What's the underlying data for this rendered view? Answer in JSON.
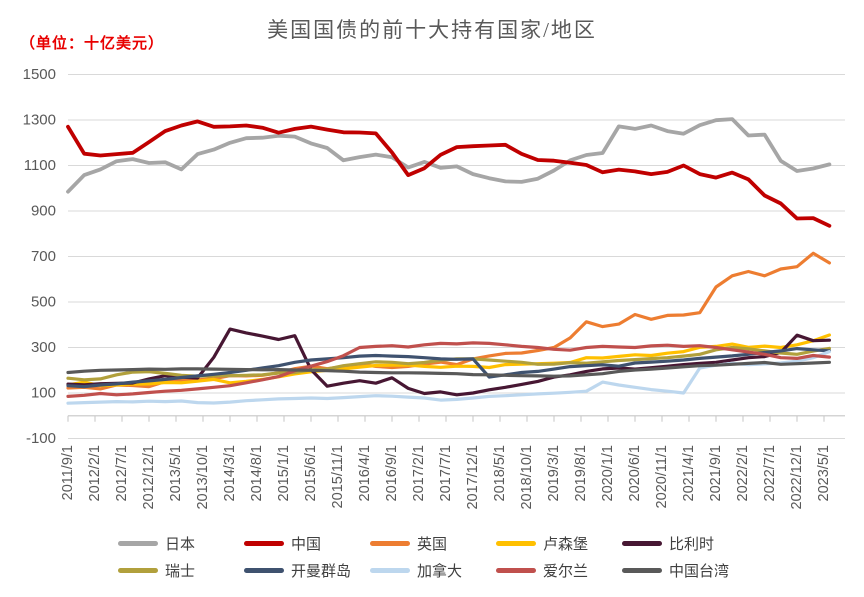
{
  "header": {
    "unit_label": "（单位：十亿美元）",
    "title": "美国国债的前十大持有国家/地区",
    "unit_label_color": "#e80000",
    "title_color": "#595959"
  },
  "y_axis": {
    "min": -100,
    "max": 1500,
    "step": 200,
    "tick_labels": [
      "1500",
      "1300",
      "1100",
      "900",
      "700",
      "500",
      "300",
      "100",
      "-100"
    ],
    "label_color": "#595959",
    "gridline_color": "#d9d9d9"
  },
  "x_axis": {
    "tick_interval_months": 5,
    "first_month": "2011/9",
    "last_sample": "2023/6",
    "label_color": "#595959",
    "tick_labels": [
      "2011/9/1",
      "2012/2/1",
      "2012/7/1",
      "2012/12/1",
      "2013/5/1",
      "2013/10/1",
      "2014/3/1",
      "2014/8/1",
      "2015/1/1",
      "2015/6/1",
      "2015/11/1",
      "2016/4/1",
      "2016/9/1",
      "2017/2/1",
      "2017/7/1",
      "2017/12/1",
      "2018/5/1",
      "2018/10/1",
      "2019/3/1",
      "2019/8/1",
      "2020/1/1",
      "2020/6/1",
      "2020/11/1",
      "2021/4/1",
      "2021/9/1",
      "2022/2/1",
      "2022/7/1",
      "2022/12/1",
      "2023/5/1"
    ]
  },
  "legend": {
    "rows": [
      [
        "日本",
        "中国",
        "英国",
        "卢森堡",
        "比利时"
      ],
      [
        "瑞士",
        "开曼群岛",
        "加拿大",
        "爱尔兰",
        "中国台湾"
      ]
    ]
  },
  "chart_data": {
    "type": "line",
    "title": "美国国债的前十大持有国家/地区",
    "unit": "十亿美元",
    "ylim": [
      -100,
      1500
    ],
    "grid": true,
    "legend_position": "bottom",
    "sampling": "quarterly values estimated from the monthly chart (2011/9 - 2023/6)",
    "x": [
      "2011/9",
      "2011/12",
      "2012/3",
      "2012/6",
      "2012/9",
      "2012/12",
      "2013/3",
      "2013/6",
      "2013/9",
      "2013/12",
      "2014/3",
      "2014/6",
      "2014/9",
      "2014/12",
      "2015/3",
      "2015/6",
      "2015/9",
      "2015/12",
      "2016/3",
      "2016/6",
      "2016/9",
      "2016/12",
      "2017/3",
      "2017/6",
      "2017/9",
      "2017/12",
      "2018/3",
      "2018/6",
      "2018/9",
      "2018/12",
      "2019/3",
      "2019/6",
      "2019/9",
      "2019/12",
      "2020/3",
      "2020/6",
      "2020/9",
      "2020/12",
      "2021/3",
      "2021/6",
      "2021/9",
      "2021/12",
      "2022/3",
      "2022/6",
      "2022/9",
      "2022/12",
      "2023/3",
      "2023/6"
    ],
    "series": [
      {
        "key": "japan",
        "name": "日本",
        "color": "#a6a6a6",
        "width": 3.8,
        "values": [
          985,
          1058,
          1083,
          1119,
          1128,
          1111,
          1114,
          1083,
          1150,
          1170,
          1200,
          1220,
          1222,
          1231,
          1227,
          1197,
          1177,
          1123,
          1137,
          1148,
          1136,
          1091,
          1116,
          1090,
          1096,
          1062,
          1044,
          1030,
          1028,
          1042,
          1078,
          1123,
          1146,
          1155,
          1272,
          1261,
          1276,
          1251,
          1240,
          1277,
          1299,
          1304,
          1232,
          1236,
          1120,
          1076,
          1087,
          1105
        ]
      },
      {
        "key": "china",
        "name": "中国",
        "color": "#c00000",
        "width": 3.8,
        "values": [
          1270,
          1152,
          1144,
          1150,
          1156,
          1203,
          1251,
          1276,
          1294,
          1270,
          1272,
          1276,
          1266,
          1244,
          1261,
          1271,
          1258,
          1246,
          1245,
          1241,
          1157,
          1058,
          1088,
          1147,
          1181,
          1185,
          1188,
          1191,
          1151,
          1124,
          1121,
          1112,
          1102,
          1070,
          1082,
          1074,
          1062,
          1072,
          1100,
          1062,
          1047,
          1069,
          1039,
          968,
          933,
          867,
          869,
          835
        ]
      },
      {
        "key": "uk",
        "name": "英国",
        "color": "#ed7d31",
        "width": 3.2,
        "values": [
          122,
          125,
          118,
          135,
          133,
          128,
          150,
          156,
          158,
          163,
          176,
          175,
          178,
          189,
          207,
          218,
          207,
          217,
          227,
          217,
          212,
          217,
          227,
          236,
          225,
          250,
          263,
          274,
          276,
          287,
          300,
          342,
          413,
          392,
          403,
          445,
          424,
          441,
          443,
          453,
          566,
          615,
          634,
          615,
          645,
          655,
          714,
          672
        ]
      },
      {
        "key": "luxembourg",
        "name": "卢森堡",
        "color": "#ffc000",
        "width": 3.2,
        "values": [
          135,
          148,
          132,
          135,
          139,
          140,
          146,
          145,
          152,
          160,
          145,
          151,
          160,
          171,
          184,
          193,
          200,
          206,
          214,
          221,
          222,
          223,
          217,
          213,
          218,
          217,
          212,
          225,
          227,
          229,
          231,
          234,
          255,
          254,
          261,
          268,
          265,
          275,
          282,
          301,
          305,
          315,
          301,
          306,
          300,
          312,
          330,
          355
        ]
      },
      {
        "key": "belgium",
        "name": "比利时",
        "color": "#471733",
        "width": 3.2,
        "values": [
          139,
          136,
          141,
          142,
          144,
          162,
          176,
          170,
          166,
          257,
          381,
          364,
          350,
          335,
          352,
          203,
          130,
          143,
          154,
          143,
          167,
          120,
          98,
          105,
          92,
          100,
          114,
          125,
          138,
          151,
          170,
          180,
          195,
          206,
          210,
          205,
          211,
          218,
          225,
          230,
          235,
          245,
          255,
          260,
          278,
          354,
          330,
          332
        ]
      },
      {
        "key": "switzerland",
        "name": "瑞士",
        "color": "#b1a03c",
        "width": 3.2,
        "values": [
          165,
          158,
          162,
          180,
          192,
          194,
          186,
          178,
          174,
          175,
          176,
          178,
          180,
          188,
          190,
          202,
          205,
          220,
          229,
          237,
          235,
          229,
          234,
          244,
          250,
          250,
          245,
          240,
          235,
          226,
          227,
          233,
          231,
          237,
          243,
          247,
          251,
          255,
          262,
          270,
          290,
          300,
          294,
          285,
          276,
          270,
          284,
          296
        ]
      },
      {
        "key": "cayman-islands",
        "name": "开曼群岛",
        "color": "#3f526f",
        "width": 3.2,
        "values": [
          132,
          128,
          135,
          140,
          148,
          153,
          160,
          168,
          175,
          182,
          190,
          200,
          210,
          220,
          235,
          245,
          250,
          255,
          262,
          265,
          262,
          260,
          255,
          250,
          248,
          250,
          170,
          180,
          190,
          195,
          205,
          216,
          220,
          224,
          218,
          232,
          236,
          240,
          245,
          252,
          258,
          263,
          270,
          278,
          285,
          295,
          290,
          285
        ]
      },
      {
        "key": "canada",
        "name": "加拿大",
        "color": "#bdd7ee",
        "width": 3.2,
        "values": [
          55,
          58,
          60,
          62,
          61,
          64,
          62,
          65,
          58,
          56,
          60,
          66,
          70,
          74,
          76,
          78,
          76,
          80,
          84,
          88,
          86,
          82,
          78,
          69,
          72,
          78,
          85,
          88,
          92,
          96,
          99,
          103,
          108,
          148,
          135,
          125,
          115,
          108,
          100,
          210,
          222,
          230,
          225,
          228,
          232,
          240,
          255,
          282
        ]
      },
      {
        "key": "ireland",
        "name": "爱尔兰",
        "color": "#c0504d",
        "width": 3.2,
        "values": [
          85,
          90,
          98,
          92,
          96,
          102,
          108,
          112,
          118,
          125,
          132,
          145,
          158,
          172,
          198,
          218,
          238,
          264,
          300,
          305,
          308,
          302,
          312,
          318,
          316,
          320,
          318,
          312,
          305,
          300,
          292,
          288,
          300,
          305,
          302,
          300,
          307,
          310,
          305,
          308,
          300,
          290,
          280,
          270,
          255,
          252,
          265,
          258
        ]
      },
      {
        "key": "taiwan-china",
        "name": "中国台湾",
        "color": "#595959",
        "width": 3.2,
        "values": [
          190,
          196,
          200,
          201,
          203,
          205,
          204,
          206,
          206,
          205,
          204,
          203,
          202,
          203,
          201,
          200,
          198,
          196,
          192,
          190,
          189,
          189,
          188,
          186,
          185,
          181,
          180,
          178,
          176,
          175,
          174,
          175,
          180,
          185,
          195,
          201,
          205,
          210,
          215,
          220,
          222,
          226,
          230,
          234,
          226,
          229,
          232,
          235
        ]
      }
    ]
  }
}
